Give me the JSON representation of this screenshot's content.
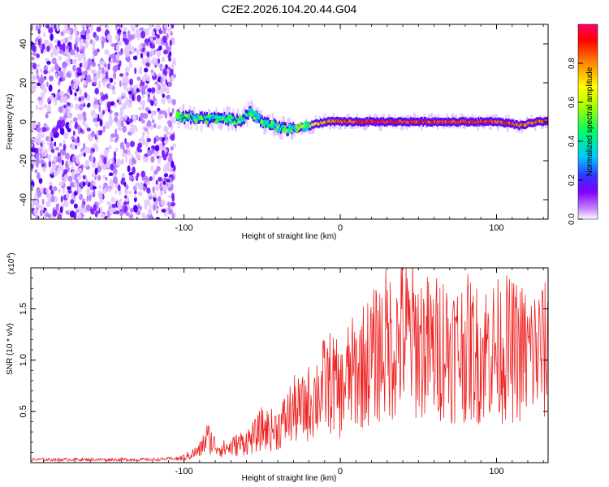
{
  "chart_data": [
    {
      "type": "heatmap",
      "title": "C2E2.2026.104.20.44.G04",
      "xlabel": "Height of straight line (km)",
      "ylabel": "Frequency (Hz)",
      "xlim": [
        -198,
        133
      ],
      "ylim": [
        -50,
        50
      ],
      "xticks": [
        -100,
        0,
        100
      ],
      "xtick_labels": [
        "-100",
        "0",
        "100"
      ],
      "yticks": [
        -40,
        -20,
        0,
        20,
        40
      ],
      "ytick_labels": [
        "-40",
        "-20",
        "0",
        "20",
        "40"
      ],
      "colorbar": {
        "label": "Normalized spectral amplitude",
        "range": [
          0,
          1
        ],
        "ticks": [
          0.0,
          0.2,
          0.4,
          0.6,
          0.8
        ],
        "tick_labels": [
          "0.0",
          "0.2",
          "0.4",
          "0.6",
          "0.8"
        ],
        "colors": [
          "#ffffff",
          "#cc88ff",
          "#8000ff",
          "#3333ff",
          "#00c8ff",
          "#00ff66",
          "#aaff00",
          "#ffff00",
          "#ff8800",
          "#ff0000",
          "#ff0066"
        ]
      },
      "noise_region": {
        "x_from": -198,
        "x_to": -106,
        "freq_range": [
          -50,
          50
        ],
        "amplitude": 0.1
      },
      "ridge": [
        {
          "x": -105,
          "f": 3,
          "amp": 0.45
        },
        {
          "x": -95,
          "f": 2,
          "amp": 0.5
        },
        {
          "x": -85,
          "f": 1,
          "amp": 0.5
        },
        {
          "x": -75,
          "f": 2,
          "amp": 0.45
        },
        {
          "x": -65,
          "f": 0,
          "amp": 0.5
        },
        {
          "x": -58,
          "f": 5,
          "amp": 0.4
        },
        {
          "x": -50,
          "f": 0,
          "amp": 0.45
        },
        {
          "x": -40,
          "f": -3,
          "amp": 0.55
        },
        {
          "x": -30,
          "f": -4,
          "amp": 0.6
        },
        {
          "x": -20,
          "f": -2,
          "amp": 0.7
        },
        {
          "x": -10,
          "f": 0,
          "amp": 0.85
        },
        {
          "x": 0,
          "f": 0,
          "amp": 0.9
        },
        {
          "x": 20,
          "f": 0,
          "amp": 0.95
        },
        {
          "x": 40,
          "f": 0,
          "amp": 0.95
        },
        {
          "x": 60,
          "f": 0,
          "amp": 0.95
        },
        {
          "x": 80,
          "f": 0,
          "amp": 0.95
        },
        {
          "x": 100,
          "f": 0,
          "amp": 0.95
        },
        {
          "x": 115,
          "f": -2,
          "amp": 0.9
        },
        {
          "x": 125,
          "f": 0,
          "amp": 0.9
        },
        {
          "x": 133,
          "f": 0,
          "amp": 0.9
        }
      ]
    },
    {
      "type": "line",
      "xlabel": "Height of straight line (km)",
      "ylabel": "SNR (10 * v/v)",
      "scale_label": "(x10",
      "scale_exponent": "4",
      "xlim": [
        -198,
        133
      ],
      "ylim": [
        0,
        1.9
      ],
      "xticks": [
        -100,
        0,
        100
      ],
      "xtick_labels": [
        "-100",
        "0",
        "100"
      ],
      "yticks": [
        0.5,
        1.0,
        1.5
      ],
      "ytick_labels": [
        "0.5",
        "1.0",
        "1.5"
      ],
      "series": [
        {
          "name": "SNR",
          "color": "#ee2222",
          "x": [
            -198,
            -180,
            -160,
            -140,
            -120,
            -105,
            -100,
            -90,
            -85,
            -80,
            -75,
            -70,
            -65,
            -60,
            -55,
            -50,
            -45,
            -40,
            -35,
            -30,
            -25,
            -20,
            -15,
            -10,
            -5,
            0,
            5,
            10,
            15,
            20,
            25,
            30,
            35,
            40,
            45,
            50,
            55,
            60,
            65,
            70,
            75,
            80,
            85,
            90,
            95,
            100,
            105,
            110,
            115,
            120,
            125,
            130,
            133
          ],
          "y": [
            0.03,
            0.03,
            0.03,
            0.03,
            0.03,
            0.04,
            0.06,
            0.14,
            0.3,
            0.2,
            0.16,
            0.18,
            0.22,
            0.25,
            0.3,
            0.4,
            0.38,
            0.4,
            0.5,
            0.62,
            0.6,
            0.7,
            0.8,
            0.9,
            0.95,
            0.8,
            1.0,
            1.05,
            1.15,
            1.2,
            1.3,
            1.4,
            1.35,
            1.5,
            1.45,
            1.4,
            1.35,
            1.3,
            1.4,
            1.35,
            1.3,
            1.35,
            1.3,
            1.25,
            1.35,
            1.3,
            1.35,
            1.3,
            1.3,
            1.25,
            1.3,
            1.3,
            1.25
          ]
        }
      ]
    }
  ]
}
